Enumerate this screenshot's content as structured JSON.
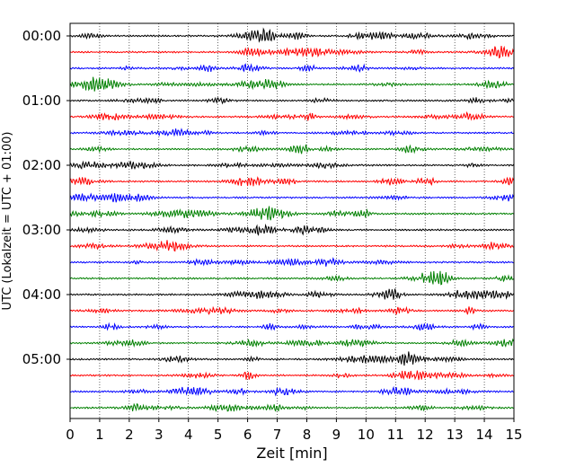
{
  "chart_data": {
    "type": "line",
    "title": "",
    "xlabel": "Zeit  [min]",
    "ylabel": "UTC (Lokalzeit = UTC + 01:00)",
    "xlim": [
      0,
      15
    ],
    "x_ticks": [
      "0",
      "1",
      "2",
      "3",
      "4",
      "5",
      "6",
      "7",
      "8",
      "9",
      "10",
      "11",
      "12",
      "13",
      "14",
      "15"
    ],
    "y_tick_labels": [
      "00:00",
      "01:00",
      "02:00",
      "03:00",
      "04:00",
      "05:00"
    ],
    "grid": "vertical dotted",
    "trace_count": 24,
    "trace_colors": [
      "#000000",
      "#ff0000",
      "#0000ff",
      "#008000"
    ]
  }
}
